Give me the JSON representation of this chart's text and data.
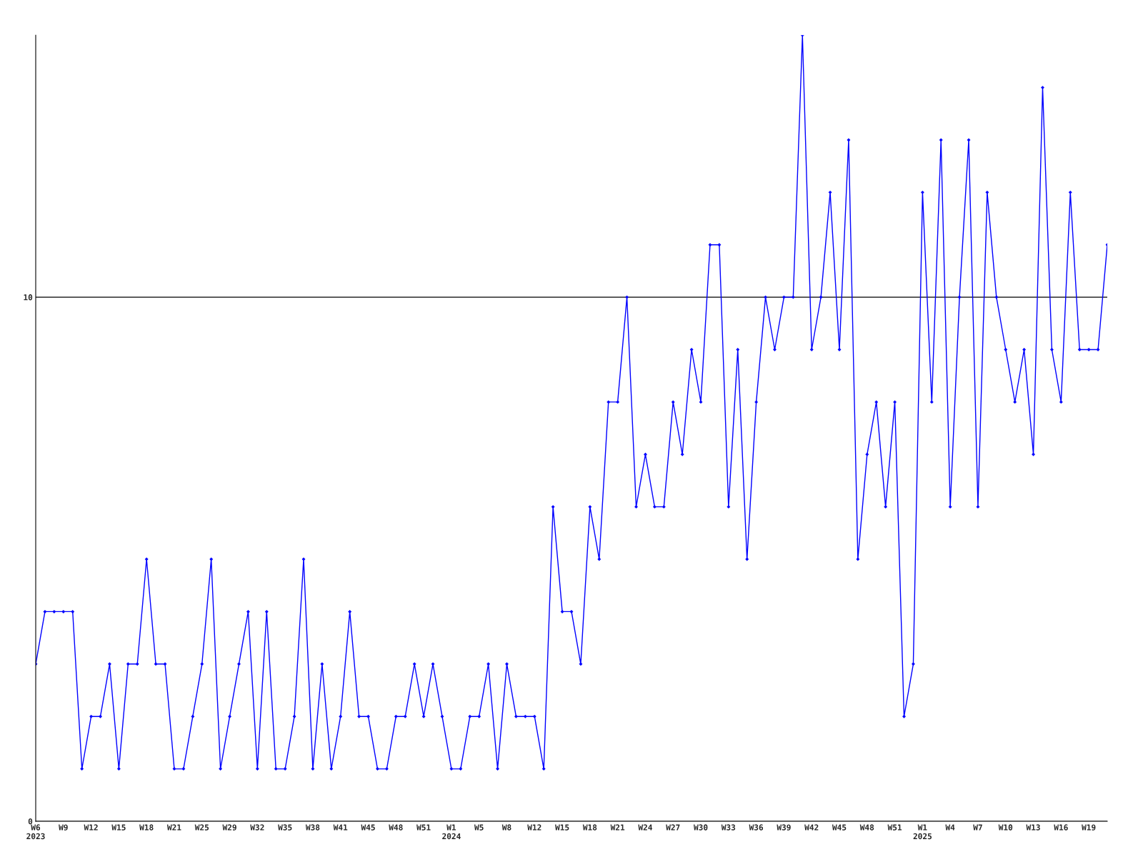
{
  "chart_data": {
    "type": "line",
    "categories": [
      "W6\n2023",
      null,
      null,
      "W9",
      null,
      null,
      "W12",
      null,
      null,
      "W15",
      null,
      null,
      "W18",
      null,
      null,
      "W21",
      null,
      null,
      "W25",
      null,
      null,
      "W29",
      null,
      null,
      "W32",
      null,
      null,
      "W35",
      null,
      null,
      "W38",
      null,
      null,
      "W41",
      null,
      null,
      "W45",
      null,
      null,
      "W48",
      null,
      null,
      "W51",
      null,
      null,
      "W1\n2024",
      null,
      null,
      "W5",
      null,
      null,
      "W8",
      null,
      null,
      "W12",
      null,
      null,
      "W15",
      null,
      null,
      "W18",
      null,
      null,
      "W21",
      null,
      null,
      "W24",
      null,
      null,
      "W27",
      null,
      null,
      "W30",
      null,
      null,
      "W33",
      null,
      null,
      "W36",
      null,
      null,
      "W39",
      null,
      null,
      "W42",
      null,
      null,
      "W45",
      null,
      null,
      "W48",
      null,
      null,
      "W51",
      null,
      null,
      "W1\n2025",
      null,
      null,
      "W4",
      null,
      null,
      "W7",
      null,
      null,
      "W10",
      null,
      null,
      "W13",
      null,
      null,
      "W16",
      null,
      null,
      "W19",
      null,
      null
    ],
    "series": [
      {
        "color": "#0000ff",
        "values": [
          3,
          4,
          4,
          4,
          4,
          1,
          2,
          2,
          3,
          1,
          3,
          3,
          5,
          3,
          3,
          1,
          1,
          2,
          3,
          5,
          1,
          2,
          3,
          4,
          1,
          4,
          1,
          1,
          2,
          5,
          1,
          3,
          1,
          2,
          4,
          2,
          2,
          1,
          1,
          2,
          2,
          3,
          2,
          3,
          2,
          1,
          1,
          2,
          2,
          3,
          1,
          3,
          2,
          2,
          2,
          1,
          6,
          4,
          4,
          3,
          6,
          5,
          8,
          8,
          10,
          6,
          7,
          6,
          6,
          8,
          7,
          9,
          8,
          11,
          11,
          6,
          9,
          5,
          8,
          10,
          9,
          10,
          10,
          15,
          9,
          10,
          12,
          9,
          13,
          5,
          7,
          8,
          6,
          8,
          2,
          3,
          12,
          8,
          13,
          6,
          10,
          13,
          6,
          12,
          10,
          9,
          8,
          9,
          7,
          14,
          9,
          8,
          12,
          9,
          9,
          9,
          11
        ]
      }
    ],
    "ylim": [
      0,
      15
    ],
    "yticks": [
      0,
      10
    ],
    "grid": "y",
    "marker": "diamond",
    "line_style": "solid"
  }
}
